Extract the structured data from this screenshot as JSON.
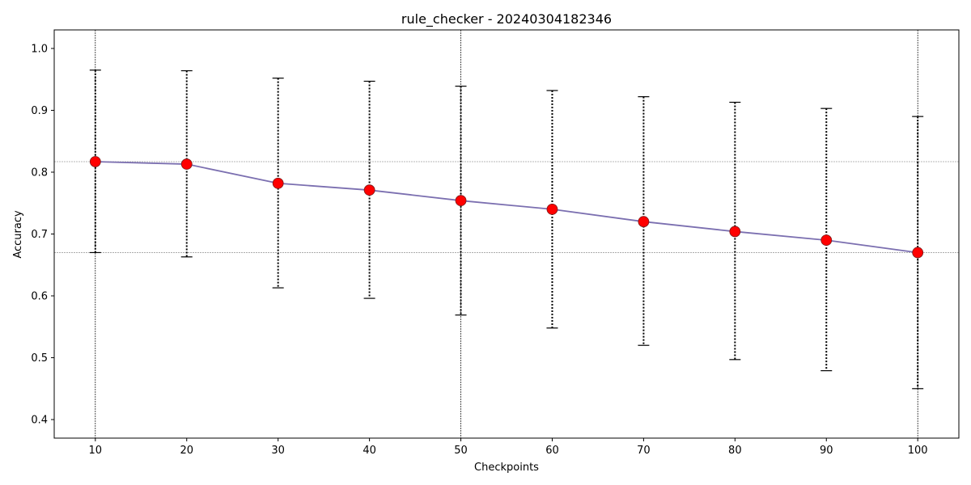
{
  "chart_data": {
    "type": "line",
    "title": "rule_checker - 20240304182346",
    "xlabel": "Checkpoints",
    "ylabel": "Accuracy",
    "x": [
      10,
      20,
      30,
      40,
      50,
      60,
      70,
      80,
      90,
      100
    ],
    "xlim": [
      5.5,
      104.5
    ],
    "ylim": [
      0.37,
      1.03
    ],
    "xticks": [
      10,
      20,
      30,
      40,
      50,
      60,
      70,
      80,
      90,
      100
    ],
    "yticks": [
      0.4,
      0.5,
      0.6,
      0.7,
      0.8,
      0.9,
      1.0
    ],
    "ytick_labels": [
      "0.4",
      "0.5",
      "0.6",
      "0.7",
      "0.8",
      "0.9",
      "1.0"
    ],
    "series": [
      {
        "values": [
          0.817,
          0.813,
          0.782,
          0.771,
          0.754,
          0.74,
          0.72,
          0.704,
          0.69,
          0.67
        ],
        "error_low": [
          0.67,
          0.663,
          0.613,
          0.596,
          0.569,
          0.548,
          0.52,
          0.497,
          0.479,
          0.45
        ],
        "error_high": [
          0.965,
          0.964,
          0.952,
          0.947,
          0.939,
          0.932,
          0.922,
          0.913,
          0.903,
          0.89
        ],
        "line_color": "#7b6fb0",
        "marker_color": "#ff0000",
        "errorbar_color": "#000000"
      }
    ],
    "reference_lines": {
      "horizontal": [
        0.817,
        0.67
      ],
      "vertical": [
        10,
        50,
        100
      ]
    },
    "grid": false
  }
}
